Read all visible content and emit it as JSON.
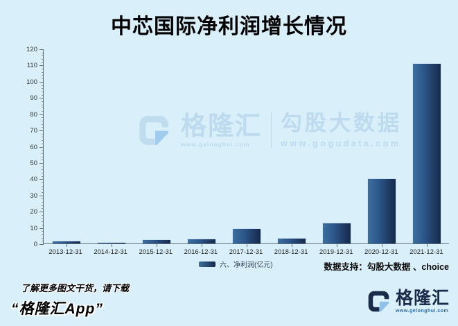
{
  "title": "中芯国际净利润增长情况",
  "chart_data": {
    "type": "bar",
    "title": "中芯国际净利润增长情况",
    "categories": [
      "2013-12-31",
      "2014-12-31",
      "2015-12-31",
      "2016-12-31",
      "2017-12-31",
      "2018-12-31",
      "2019-12-31",
      "2020-12-31",
      "2021-12-31"
    ],
    "values": [
      1.7,
      0.9,
      2.4,
      3.0,
      9.2,
      3.4,
      12.8,
      40,
      111
    ],
    "series_name": "六、净利润(亿元)",
    "xlabel": "",
    "ylabel": "",
    "ylim": [
      0,
      120
    ],
    "ytick_step": 10,
    "yminor_step": 2,
    "grid": false,
    "legend_position": "bottom",
    "bar_color_start": "#3c6f9f",
    "bar_color_end": "#16294a"
  },
  "legend": {
    "label": "六、净利润(亿元)"
  },
  "support_note": "数据支持：勾股大数据 、choice",
  "watermark": {
    "brand": "格隆汇",
    "brand_url": "www.gelonghui.com",
    "partner": "勾股大数据",
    "partner_url": "www.gogudata.com"
  },
  "footer": {
    "promo_line1": "了解更多图文干货，请下载",
    "promo_line2": "“格隆汇App”",
    "logo_text": "格隆汇",
    "logo_url": "www.gelonghui.com"
  },
  "colors": {
    "background": "#d9effa",
    "bar_gradient_start": "#3c6f9f",
    "bar_gradient_end": "#16294a",
    "axis": "#5f7079",
    "watermark": "#b9d7ee",
    "logo_navy": "#1b2b4a",
    "logo_blue": "#5b9bd5"
  }
}
